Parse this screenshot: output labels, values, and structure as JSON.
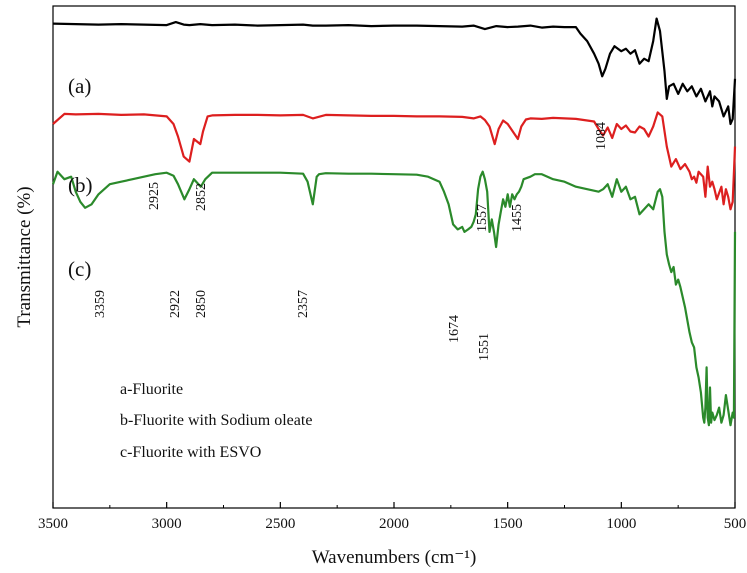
{
  "chart_data": {
    "type": "line",
    "title": "",
    "xlabel": "Wavenumbers (cm⁻¹)",
    "ylabel": "Transmittance (%)",
    "xlim": [
      3500,
      500
    ],
    "x_reversed": true,
    "yticks_shown": false,
    "grid": false,
    "x_ticks": [
      "3500",
      "3000",
      "2500",
      "2000",
      "1500",
      "1000",
      "500"
    ],
    "legend": {
      "placement": "bottom-left",
      "entries": [
        "a-Fluorite",
        "b-Fluorite with Sodium oleate",
        "c-Fluorite with ESVO"
      ]
    },
    "series": [
      {
        "name": "a-Fluorite",
        "curve_label": "(a)",
        "color": "#000000",
        "x": [
          3500,
          3400,
          3300,
          3200,
          3100,
          3000,
          2960,
          2925,
          2900,
          2852,
          2800,
          2700,
          2600,
          2500,
          2400,
          2357,
          2300,
          2200,
          2100,
          2000,
          1900,
          1800,
          1700,
          1650,
          1600,
          1550,
          1500,
          1455,
          1400,
          1350,
          1300,
          1250,
          1200,
          1180,
          1150,
          1120,
          1100,
          1084,
          1070,
          1050,
          1030,
          1000,
          980,
          960,
          940,
          920,
          900,
          880,
          860,
          845,
          830,
          810,
          800,
          790,
          770,
          750,
          730,
          710,
          690,
          670,
          650,
          630,
          610,
          600,
          590,
          570,
          550,
          530,
          520,
          510,
          500
        ],
        "y": [
          96.5,
          96.4,
          96.3,
          96.4,
          96.3,
          96.2,
          96.8,
          96.3,
          96.2,
          96.4,
          96.2,
          96.3,
          96.1,
          96.2,
          96.3,
          96.1,
          96.1,
          96.2,
          96.0,
          96.1,
          96.1,
          96.0,
          95.9,
          96.1,
          95.4,
          96.0,
          95.8,
          95.9,
          96.1,
          95.7,
          95.9,
          95.8,
          95.8,
          94.5,
          93.0,
          90.5,
          88.5,
          86.0,
          87.5,
          90.5,
          92.0,
          91.0,
          91.5,
          90.5,
          91.2,
          88.5,
          89.5,
          89.0,
          93.0,
          97.5,
          95.0,
          87.0,
          81.5,
          84.0,
          84.5,
          82.5,
          84.5,
          83.0,
          84.0,
          82.0,
          83.5,
          81.0,
          83.0,
          80.0,
          82.0,
          81.0,
          78.0,
          80.0,
          76.5,
          77.5,
          85.5
        ]
      },
      {
        "name": "b-Fluorite with Sodium oleate",
        "curve_label": "(b)",
        "color": "#dd1f1f",
        "x": [
          3500,
          3450,
          3400,
          3300,
          3200,
          3100,
          3050,
          3000,
          2970,
          2950,
          2925,
          2900,
          2880,
          2852,
          2840,
          2820,
          2800,
          2700,
          2600,
          2500,
          2400,
          2357,
          2300,
          2200,
          2100,
          2000,
          1900,
          1800,
          1700,
          1650,
          1620,
          1600,
          1580,
          1557,
          1540,
          1520,
          1500,
          1470,
          1455,
          1440,
          1420,
          1400,
          1350,
          1300,
          1250,
          1200,
          1150,
          1120,
          1100,
          1080,
          1060,
          1040,
          1020,
          1000,
          980,
          960,
          940,
          920,
          900,
          880,
          860,
          840,
          820,
          800,
          780,
          760,
          740,
          720,
          700,
          690,
          680,
          670,
          660,
          640,
          630,
          620,
          610,
          600,
          590,
          580,
          560,
          550,
          540,
          530,
          520,
          510,
          500
        ],
        "y": [
          76.5,
          78.5,
          78.4,
          78.5,
          78.3,
          78.4,
          78.2,
          78.0,
          76.5,
          74.0,
          70.0,
          69.0,
          73.5,
          72.5,
          75.0,
          78.0,
          78.2,
          78.3,
          78.3,
          78.2,
          78.3,
          77.6,
          78.3,
          78.2,
          78.1,
          78.1,
          78.0,
          78.0,
          77.9,
          77.6,
          78.0,
          77.3,
          76.0,
          72.5,
          75.5,
          77.2,
          76.5,
          74.5,
          73.5,
          76.0,
          77.4,
          77.6,
          77.5,
          77.7,
          77.6,
          77.5,
          77.2,
          77.0,
          75.5,
          74.2,
          75.8,
          73.7,
          76.5,
          75.5,
          76.2,
          75.0,
          74.8,
          76.0,
          75.5,
          74.0,
          76.0,
          78.8,
          78.0,
          72.0,
          68.0,
          69.5,
          67.5,
          68.5,
          67.0,
          65.5,
          66.0,
          64.8,
          67.0,
          66.0,
          62.0,
          68.0,
          64.0,
          65.0,
          63.5,
          61.5,
          64.0,
          60.5,
          63.5,
          62.0,
          59.5,
          61.0,
          72.0
        ]
      },
      {
        "name": "c-Fluorite with ESVO",
        "curve_label": "(c)",
        "color": "#2b8a2b",
        "x": [
          3500,
          3480,
          3450,
          3420,
          3400,
          3380,
          3359,
          3330,
          3300,
          3250,
          3200,
          3150,
          3100,
          3050,
          3000,
          2970,
          2950,
          2922,
          2900,
          2880,
          2850,
          2830,
          2800,
          2700,
          2600,
          2500,
          2400,
          2380,
          2357,
          2340,
          2330,
          2300,
          2200,
          2100,
          2000,
          1900,
          1850,
          1800,
          1780,
          1760,
          1740,
          1720,
          1700,
          1690,
          1674,
          1660,
          1650,
          1640,
          1630,
          1620,
          1610,
          1600,
          1590,
          1580,
          1570,
          1560,
          1551,
          1540,
          1530,
          1520,
          1510,
          1500,
          1490,
          1480,
          1470,
          1460,
          1450,
          1440,
          1430,
          1400,
          1380,
          1350,
          1300,
          1250,
          1200,
          1150,
          1100,
          1080,
          1060,
          1040,
          1020,
          1000,
          980,
          960,
          940,
          920,
          900,
          880,
          860,
          840,
          830,
          820,
          810,
          800,
          790,
          780,
          770,
          760,
          750,
          740,
          720,
          700,
          690,
          680,
          670,
          660,
          650,
          640,
          635,
          630,
          625,
          620,
          615,
          610,
          605,
          600,
          590,
          580,
          570,
          560,
          550,
          540,
          530,
          520,
          510,
          505,
          500
        ],
        "y": [
          64.5,
          67.0,
          65.5,
          66.0,
          63.0,
          61.0,
          59.8,
          60.5,
          62.5,
          64.5,
          65.0,
          65.5,
          66.0,
          66.5,
          66.8,
          66.2,
          64.5,
          61.5,
          63.5,
          65.5,
          64.0,
          65.5,
          66.8,
          66.8,
          66.8,
          66.8,
          66.6,
          65.0,
          60.5,
          66.0,
          66.5,
          66.7,
          66.6,
          66.6,
          66.5,
          66.4,
          66.0,
          65.0,
          63.0,
          60.5,
          56.5,
          55.5,
          56.0,
          55.0,
          55.5,
          56.0,
          57.0,
          58.5,
          63.5,
          66.0,
          67.0,
          65.5,
          63.0,
          55.0,
          57.5,
          55.0,
          52.0,
          56.5,
          59.0,
          61.5,
          60.0,
          62.5,
          60.0,
          62.5,
          61.5,
          62.5,
          63.0,
          64.0,
          65.5,
          66.0,
          66.5,
          66.5,
          65.5,
          65.0,
          64.0,
          63.5,
          63.0,
          63.5,
          64.5,
          62.0,
          65.5,
          63.0,
          64.0,
          61.5,
          62.0,
          58.5,
          59.5,
          60.5,
          59.5,
          63.0,
          63.5,
          62.0,
          55.0,
          50.5,
          48.5,
          47.0,
          48.0,
          44.5,
          45.5,
          44.0,
          40.0,
          35.0,
          33.0,
          32.0,
          28.0,
          26.0,
          23.0,
          18.0,
          17.0,
          20.0,
          28.0,
          18.0,
          16.5,
          24.0,
          17.0,
          19.0,
          17.5,
          18.5,
          20.0,
          17.0,
          18.5,
          22.5,
          19.5,
          16.5,
          19.0,
          18.0,
          55.0
        ]
      }
    ],
    "peak_annotations": [
      {
        "label": "1084",
        "series": "a"
      },
      {
        "label": "2925",
        "series": "b"
      },
      {
        "label": "2852",
        "series": "b"
      },
      {
        "label": "1557",
        "series": "b"
      },
      {
        "label": "1455",
        "series": "b"
      },
      {
        "label": "3359",
        "series": "c"
      },
      {
        "label": "2922",
        "series": "c"
      },
      {
        "label": "2850",
        "series": "c"
      },
      {
        "label": "2357",
        "series": "c"
      },
      {
        "label": "1674",
        "series": "c"
      },
      {
        "label": "1551",
        "series": "c"
      }
    ]
  }
}
